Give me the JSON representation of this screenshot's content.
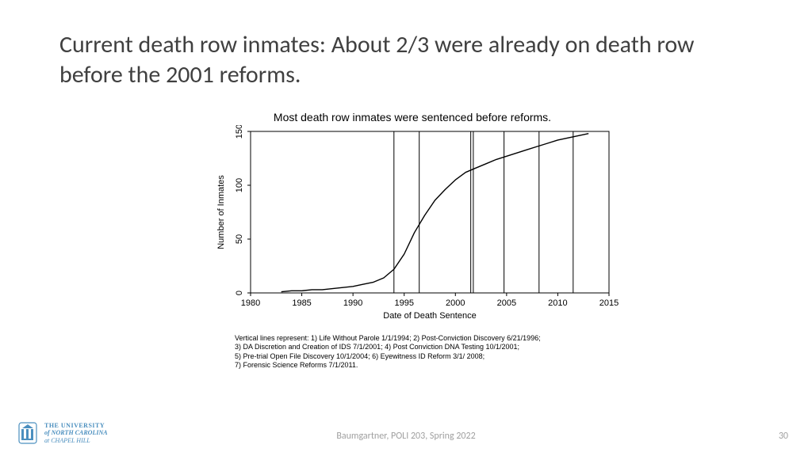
{
  "slide": {
    "title": "Current death row inmates: About 2/3 were already on death row before the 2001 reforms."
  },
  "chart": {
    "type": "line",
    "title": "Most death row inmates were sentenced before reforms.",
    "xlabel": "Date of Death Sentence",
    "ylabel": "Number of Inmates",
    "xlim": [
      1980,
      2015
    ],
    "ylim": [
      0,
      150
    ],
    "xtick_step": 5,
    "xticks": [
      1980,
      1985,
      1990,
      1995,
      2000,
      2005,
      2010,
      2015
    ],
    "yticks": [
      0,
      50,
      100,
      150
    ],
    "background_color": "#ffffff",
    "axis_color": "#000000",
    "line_color": "#000000",
    "vline_color": "#000000",
    "line_width": 1.4,
    "vline_width": 1,
    "label_fontsize": 11,
    "tick_fontsize": 11,
    "title_fontsize": 14,
    "series": {
      "x": [
        1983,
        1984,
        1985,
        1986,
        1987,
        1988,
        1989,
        1990,
        1991,
        1992,
        1993,
        1994,
        1995,
        1996,
        1997,
        1998,
        1999,
        2000,
        2001,
        2002,
        2003,
        2004,
        2005,
        2006,
        2007,
        2008,
        2009,
        2010,
        2011,
        2012,
        2013
      ],
      "y": [
        1,
        2,
        2,
        3,
        3,
        4,
        5,
        6,
        8,
        10,
        14,
        22,
        36,
        56,
        72,
        86,
        96,
        105,
        112,
        116,
        120,
        124,
        127,
        130,
        133,
        136,
        139,
        142,
        144,
        146,
        148
      ]
    },
    "vlines": [
      1994,
      1996.47,
      2001.5,
      2001.75,
      2004.75,
      2008.17,
      2011.5
    ],
    "caption_lines": [
      "Vertical lines represent: 1) Life Without Parole 1/1/1994; 2) Post-Conviction Discovery 6/21/1996;",
      "3) DA Discretion and Creation of IDS 7/1/2001; 4) Post Conviction DNA Testing 10/1/2001;",
      "5) Pre-trial Open File Discovery 10/1/2004; 6) Eyewitness ID Reform 3/1/ 2008;",
      "7) Forensic Science Reforms 7/1/2011."
    ]
  },
  "footer": {
    "center": "Baumgartner, POLI 203, Spring 2022",
    "page": "30",
    "logo": {
      "line1": "THE UNIVERSITY",
      "line2": "of NORTH CAROLINA",
      "line3": "at CHAPEL HILL"
    }
  }
}
